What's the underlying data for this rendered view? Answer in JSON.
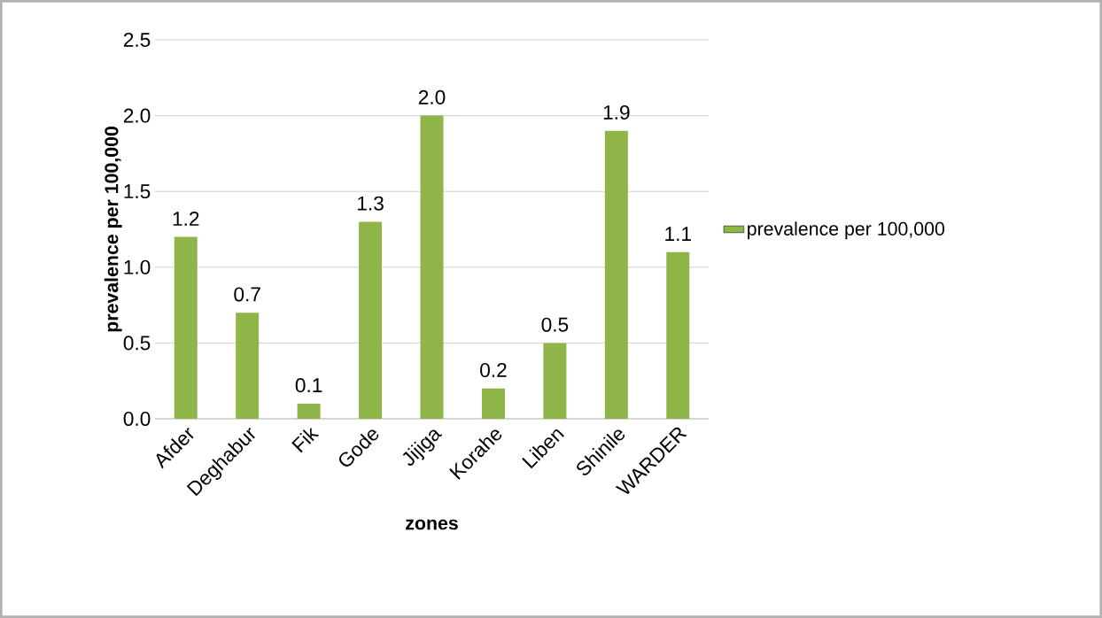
{
  "chart_data": {
    "type": "bar",
    "xlabel": "zones",
    "ylabel": "prevalence per 100,000",
    "categories": [
      "Afder",
      "Deghabur",
      "Fik",
      "Gode",
      "Jijiga",
      "Korahe",
      "Liben",
      "Shinile",
      "WARDER"
    ],
    "series": [
      {
        "name": "prevalence per 100,000",
        "color": "#8fb548",
        "values": [
          1.2,
          0.7,
          0.1,
          1.3,
          2.0,
          0.2,
          0.5,
          1.9,
          1.1
        ],
        "value_labels": [
          "1.2",
          "0.7",
          "0.1",
          "1.3",
          "2.0",
          "0.2",
          "0.5",
          "1.9",
          "1.1"
        ]
      }
    ],
    "ylim": [
      0,
      2.5
    ],
    "yticks": [
      {
        "value": 0,
        "label": "0.0"
      },
      {
        "value": 0.5,
        "label": "0.5"
      },
      {
        "value": 1,
        "label": "1.0"
      },
      {
        "value": 1.5,
        "label": "1.5"
      },
      {
        "value": 2,
        "label": "2.0"
      },
      {
        "value": 2.5,
        "label": "2.5"
      }
    ],
    "grid": "y",
    "legend": "right"
  }
}
